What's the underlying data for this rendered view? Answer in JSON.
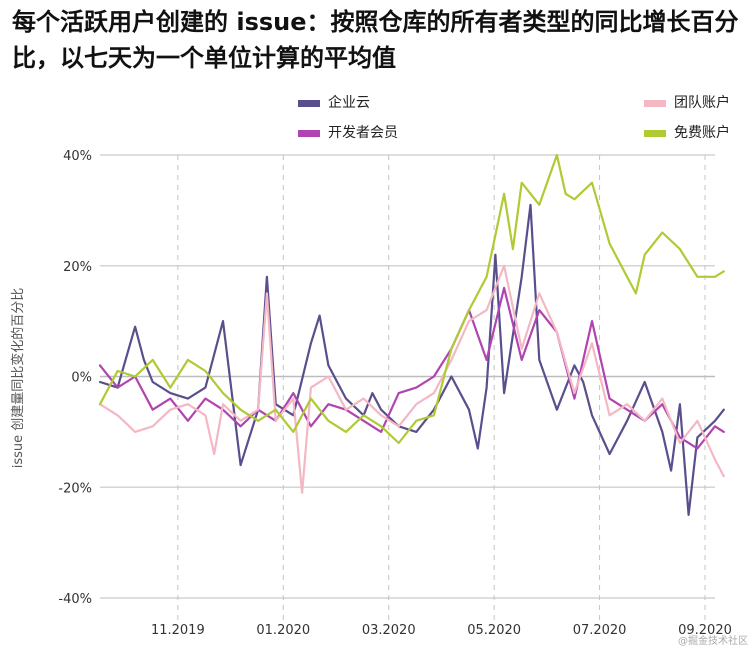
{
  "title": "每个活跃用户创建的 issue：按照仓库的所有者类型的同比增长百分比，以七天为一个单位计算的平均值",
  "watermark": "@掘金技术社区",
  "chart_data": {
    "type": "line",
    "title": "每个活跃用户创建的 issue：按照仓库的所有者类型的同比增长百分比，以七天为一个单位计算的平均值",
    "xlabel": "",
    "ylabel": "issue 创建量同比变化的百分比",
    "xlim": [
      0,
      70
    ],
    "ylim": [
      -40,
      40
    ],
    "yticks": [
      40,
      20,
      0,
      -20,
      -40
    ],
    "ytick_labels": [
      "40%",
      "20%",
      "0%",
      "-20%",
      "-40%"
    ],
    "xticks": [
      10,
      22,
      34,
      46,
      58,
      70
    ],
    "xtick_labels": [
      "11.2019",
      "01.2020",
      "03.2020",
      "05.2020",
      "07.2020",
      "09.2020"
    ],
    "grid": "horizontal solid, vertical dashed",
    "legend_position": "top",
    "series": [
      {
        "name": "企业云",
        "color": "#5a4e8c",
        "x": [
          0,
          2,
          4,
          5,
          6,
          8,
          10,
          12,
          14,
          16,
          18,
          19,
          20,
          22,
          24,
          25,
          26,
          28,
          30,
          31,
          32,
          34,
          36,
          38,
          40,
          42,
          43,
          44,
          45,
          46,
          48,
          49,
          50,
          52,
          54,
          55,
          56,
          58,
          60,
          62,
          64,
          65,
          66,
          67,
          68,
          70,
          71
        ],
        "values": [
          -1,
          -2,
          9,
          3,
          -1,
          -3,
          -4,
          -2,
          10,
          -16,
          -6,
          18,
          -5,
          -7,
          6,
          11,
          2,
          -4,
          -7,
          -3,
          -6,
          -9,
          -10,
          -6,
          0,
          -6,
          -13,
          -2,
          22,
          -3,
          18,
          31,
          3,
          -6,
          2,
          -1,
          -7,
          -14,
          -8,
          -1,
          -10,
          -17,
          -5,
          -25,
          -11,
          -8,
          -6
        ]
      },
      {
        "name": "开发者会员",
        "color": "#b044b0",
        "x": [
          0,
          2,
          4,
          6,
          8,
          10,
          12,
          14,
          16,
          18,
          20,
          22,
          24,
          26,
          28,
          30,
          32,
          34,
          36,
          38,
          40,
          42,
          44,
          46,
          48,
          50,
          52,
          54,
          56,
          58,
          60,
          62,
          64,
          66,
          68,
          70,
          71
        ],
        "values": [
          2,
          -2,
          0,
          -6,
          -4,
          -8,
          -4,
          -6,
          -9,
          -6,
          -8,
          -3,
          -9,
          -5,
          -6,
          -8,
          -10,
          -3,
          -2,
          0,
          5,
          12,
          3,
          16,
          3,
          12,
          8,
          -4,
          10,
          -4,
          -6,
          -8,
          -5,
          -11,
          -13,
          -9,
          -10
        ]
      },
      {
        "name": "团队账户",
        "color": "#f3b8c4",
        "x": [
          0,
          2,
          4,
          6,
          8,
          10,
          12,
          13,
          14,
          16,
          18,
          19,
          20,
          22,
          23,
          24,
          26,
          28,
          30,
          32,
          34,
          36,
          38,
          40,
          42,
          44,
          46,
          48,
          50,
          52,
          54,
          56,
          58,
          60,
          62,
          64,
          66,
          68,
          70,
          71
        ],
        "values": [
          -5,
          -7,
          -10,
          -9,
          -6,
          -5,
          -7,
          -14,
          -5,
          -8,
          -6,
          15,
          -8,
          -4,
          -21,
          -2,
          0,
          -6,
          -4,
          -7,
          -9,
          -5,
          -3,
          3,
          10,
          12,
          20,
          5,
          15,
          8,
          -3,
          6,
          -7,
          -5,
          -8,
          -4,
          -12,
          -8,
          -15,
          -18
        ]
      },
      {
        "name": "免费账户",
        "color": "#aecb33",
        "x": [
          0,
          2,
          4,
          6,
          8,
          10,
          12,
          14,
          16,
          18,
          20,
          22,
          24,
          26,
          28,
          30,
          32,
          34,
          36,
          38,
          40,
          42,
          44,
          46,
          47,
          48,
          50,
          52,
          53,
          54,
          56,
          58,
          60,
          61,
          62,
          64,
          66,
          68,
          70,
          71
        ],
        "values": [
          -5,
          1,
          0,
          3,
          -2,
          3,
          1,
          -3,
          -6,
          -8,
          -6,
          -10,
          -4,
          -8,
          -10,
          -7,
          -9,
          -12,
          -8,
          -7,
          5,
          12,
          18,
          33,
          23,
          35,
          31,
          40,
          33,
          32,
          35,
          24,
          18,
          15,
          22,
          26,
          23,
          18,
          18,
          19
        ]
      }
    ]
  }
}
